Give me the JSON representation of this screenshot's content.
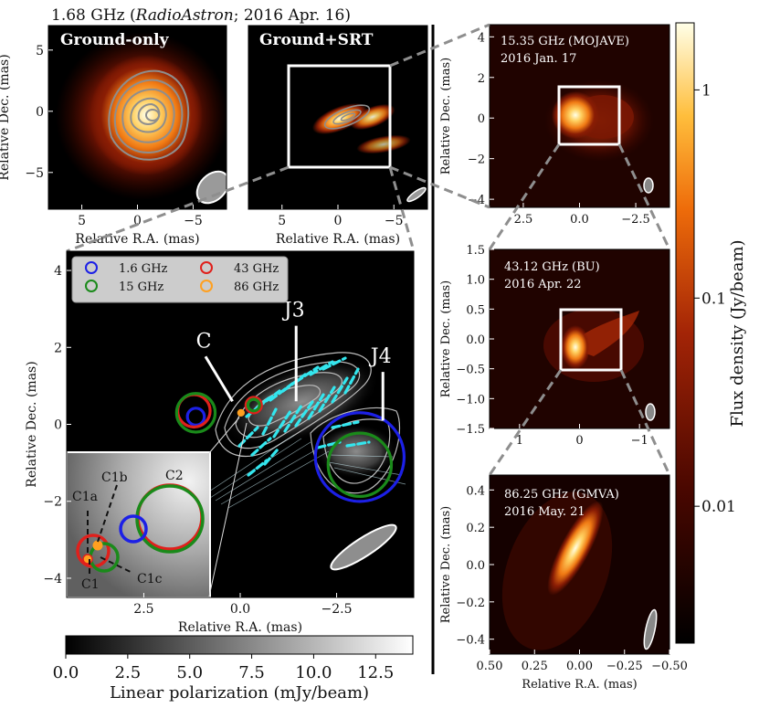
{
  "figure": {
    "top_title": "1.68 GHz (RadioAstron; 2016 Apr. 16)"
  },
  "colors": {
    "hot_low": "#000000",
    "hot_mid": "#c8300e",
    "hot_high": "#ffffe4",
    "c_16": "#1c20e6",
    "c_15": "#1a8a1a",
    "c_43": "#e0201c",
    "c_86": "#ffa020",
    "pol_vec": "#33e6ee",
    "contour": "#9a9a9a"
  },
  "chart_data": [
    {
      "type": "heatmap",
      "id": "ground_only",
      "title": "Ground-only",
      "xlabel": "Relative R.A. (mas)",
      "ylabel": "Relative Dec. (mas)",
      "xlim": [
        8,
        -8
      ],
      "ylim": [
        -8,
        7
      ],
      "xticks": [
        5,
        0,
        -5
      ],
      "yticks": [
        5,
        0,
        -5
      ],
      "tick_labels_x": [
        "5",
        "0",
        "−5"
      ],
      "tick_labels_y": [
        "5",
        "0",
        "−5"
      ],
      "peak_position": [
        0,
        0
      ],
      "contours_count": 6
    },
    {
      "type": "heatmap",
      "id": "ground_srt",
      "title": "Ground+SRT",
      "xlabel": "Relative R.A. (mas)",
      "xlim": [
        8,
        -8
      ],
      "ylim": [
        -8,
        7
      ],
      "xticks": [
        5,
        0,
        -5
      ],
      "tick_labels_x": [
        "5",
        "0",
        "−5"
      ],
      "zoom_box": [
        5,
        -5,
        -4.5,
        4.5
      ]
    },
    {
      "type": "heatmap",
      "id": "mojave",
      "freq_label": "15.35 GHz (MOJAVE)",
      "date": "2016 Jan. 17",
      "ylabel": "Relative Dec. (mas)",
      "xlim": [
        4,
        -4
      ],
      "ylim": [
        -4.4,
        4.6
      ],
      "xticks": [
        2.5,
        0,
        -2.5
      ],
      "yticks": [
        4,
        2,
        0,
        -2,
        -4
      ],
      "tick_labels_x": [
        "2.5",
        "0.0",
        "−2.5"
      ],
      "tick_labels_y": [
        "4",
        "2",
        "0",
        "−2",
        "−4"
      ],
      "zoom_box": [
        0.5,
        -1.5,
        -1.5,
        1.5
      ]
    },
    {
      "type": "heatmap",
      "id": "bu",
      "freq_label": "43.12 GHz (BU)",
      "date": "2016 Apr. 22",
      "ylabel": "Relative Dec. (mas)",
      "xlim": [
        1.5,
        -1.5
      ],
      "ylim": [
        -1.5,
        1.5
      ],
      "xticks": [
        1,
        0,
        -1
      ],
      "yticks": [
        1.5,
        1.0,
        0.5,
        0.0,
        -0.5,
        -1.0,
        -1.5
      ],
      "tick_labels_x": [
        "1",
        "0",
        "−1"
      ],
      "tick_labels_y": [
        "1.5",
        "1.0",
        "0.5",
        "0.0",
        "−0.5",
        "−1.0",
        "−1.5"
      ],
      "zoom_box": [
        0.5,
        -0.5,
        -0.5,
        0.5
      ]
    },
    {
      "type": "heatmap",
      "id": "gmva",
      "freq_label": "86.25 GHz (GMVA)",
      "date": "2016 May. 21",
      "xlabel": "Relative R.A. (mas)",
      "ylabel": "Relative Dec. (mas)",
      "xlim": [
        0.5,
        -0.5
      ],
      "ylim": [
        -0.48,
        0.48
      ],
      "xticks": [
        0.5,
        0.25,
        0,
        -0.25,
        -0.5
      ],
      "yticks": [
        0.4,
        0.2,
        0.0,
        -0.2,
        -0.4
      ],
      "tick_labels_x": [
        "0.50",
        "0.25",
        "0.00",
        "−0.25",
        "−0.50"
      ],
      "tick_labels_y": [
        "0.4",
        "0.2",
        "0.0",
        "−0.2",
        "−0.4"
      ]
    },
    {
      "type": "scatter",
      "id": "polarization_main",
      "xlabel": "Relative R.A. (mas)",
      "ylabel": "Relative Dec. (mas)",
      "xlim": [
        4.5,
        -4.5
      ],
      "ylim": [
        -4.5,
        4.5
      ],
      "xticks": [
        2.5,
        0,
        -2.5
      ],
      "yticks": [
        4,
        2,
        0,
        -2,
        -4
      ],
      "tick_labels_x": [
        "2.5",
        "0.0",
        "−2.5"
      ],
      "tick_labels_y": [
        "4",
        "2",
        "0",
        "−2",
        "−4"
      ],
      "legend": [
        {
          "label": "1.6 GHz",
          "color_key": "c_16"
        },
        {
          "label": "43 GHz",
          "color_key": "c_43"
        },
        {
          "label": "15 GHz",
          "color_key": "c_15"
        },
        {
          "label": "86 GHz",
          "color_key": "c_86"
        }
      ],
      "legend_position": "top-left",
      "components": [
        {
          "freq": "1.6 GHz",
          "color_key": "c_16",
          "x": 1.15,
          "y": 0.2,
          "r": 0.22
        },
        {
          "freq": "43 GHz",
          "color_key": "c_43",
          "x": 1.2,
          "y": 0.35,
          "r": 0.42
        },
        {
          "freq": "15 GHz",
          "color_key": "c_15",
          "x": 1.15,
          "y": 0.3,
          "r": 0.5
        },
        {
          "freq": "43 GHz",
          "color_key": "c_43",
          "x": -0.35,
          "y": 0.5,
          "r": 0.2
        },
        {
          "freq": "15 GHz",
          "color_key": "c_15",
          "x": -0.35,
          "y": 0.5,
          "r": 0.15
        },
        {
          "freq": "86 GHz",
          "color_key": "c_86",
          "x": -0.02,
          "y": 0.3,
          "r": 0.06
        },
        {
          "freq": "1.6 GHz",
          "color_key": "c_16",
          "x": -3.1,
          "y": -0.85,
          "r": 1.15
        },
        {
          "freq": "15 GHz",
          "color_key": "c_15",
          "x": -3.1,
          "y": -1.05,
          "r": 0.82
        }
      ],
      "annotations": [
        {
          "label": "C",
          "x": 0.9,
          "y": 2.0,
          "tx": 0.2,
          "ty": 0.6
        },
        {
          "label": "J3",
          "x": -1.45,
          "y": 2.8,
          "tx": -1.45,
          "ty": 0.6
        },
        {
          "label": "J4",
          "x": -3.7,
          "y": 1.6,
          "tx": -3.7,
          "ty": 0.1
        }
      ],
      "inset": {
        "labels": [
          "C2",
          "C1b",
          "C1a",
          "C1",
          "C1c"
        ]
      },
      "colorbar": {
        "label": "Linear polarization (mJy/beam)",
        "ticks": [
          0.0,
          2.5,
          5.0,
          7.5,
          10.0,
          12.5
        ],
        "tick_labels": [
          "0.0",
          "2.5",
          "5.0",
          "7.5",
          "10.0",
          "12.5"
        ],
        "range": [
          0,
          14
        ]
      }
    },
    {
      "type": "colorbar",
      "id": "flux_colorbar",
      "label": "Flux density (Jy/beam)",
      "scale": "log",
      "range": [
        0.0022,
        2.1
      ],
      "ticks": [
        1,
        0.1,
        0.01
      ],
      "tick_labels": [
        "1",
        "0.1",
        "0.01"
      ]
    }
  ]
}
